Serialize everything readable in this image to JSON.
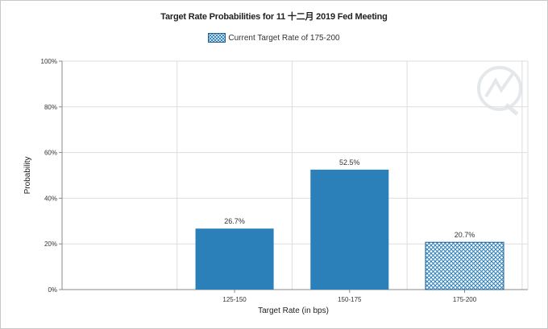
{
  "colors": {
    "bar": "#2b80b9",
    "current_rate_pattern": "#2b80b9",
    "grid": "#dddddd",
    "axis": "#888888"
  },
  "chart_data": {
    "type": "bar",
    "title": "Target Rate Probabilities for 11 十二月 2019 Fed Meeting",
    "legend": [
      "Current Target Rate of 175-200"
    ],
    "legend_position": "top-center",
    "categories": [
      "125-150",
      "150-175",
      "175-200"
    ],
    "values": [
      26.7,
      52.5,
      20.7
    ],
    "data_labels": [
      "26.7%",
      "52.5%",
      "20.7%"
    ],
    "highlight_category": "175-200",
    "xlabel": "Target Rate (in bps)",
    "ylabel": "Probability",
    "ylim": [
      0,
      100
    ],
    "yticks": [
      0,
      20,
      40,
      60,
      80,
      100
    ],
    "ytick_labels": [
      "0%",
      "20%",
      "40%",
      "60%",
      "80%",
      "100%"
    ],
    "grid": true
  }
}
